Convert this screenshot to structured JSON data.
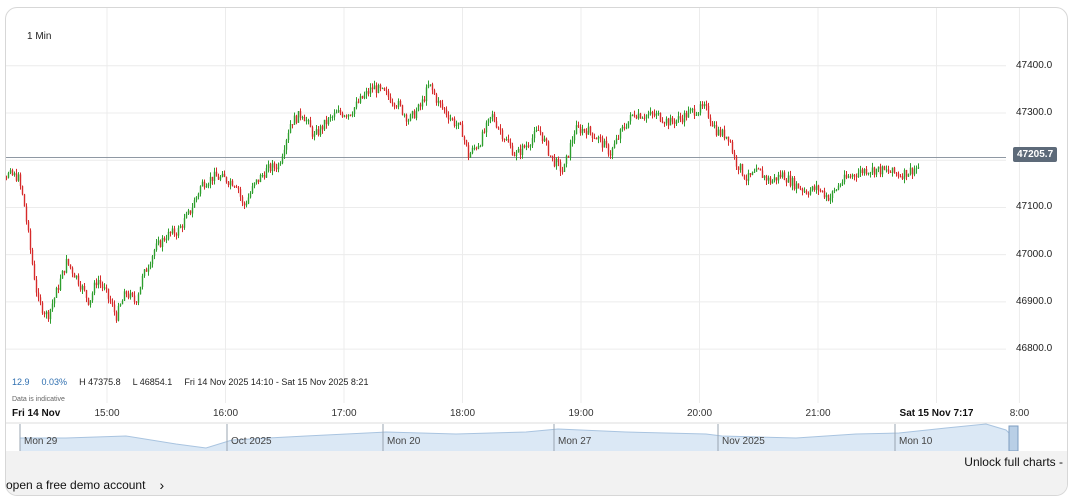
{
  "timeframe": "1 Min",
  "stats": {
    "change": "12.9",
    "change_pct": "0.03%",
    "high": "H 47375.8",
    "low": "L 46854.1",
    "range": "Fri 14 Nov 2025 14:10 - Sat 15 Nov 2025 8:21"
  },
  "indicative": "Data is indicative",
  "colors": {
    "up": "#2e9e2e",
    "down": "#d62b2b",
    "grid": "#ececec",
    "nav_fill": "#dbe8f5",
    "nav_line": "#a9c4e0"
  },
  "chart_data": {
    "type": "candlestick",
    "current_price": "47205.7",
    "ylim": [
      46760,
      47480
    ],
    "y_ticks": [
      "47400.0",
      "47300.0",
      "47200.0",
      "47100.0",
      "47000.0",
      "46900.0",
      "46800.0"
    ],
    "y_tick_values": [
      47400,
      47300,
      47200,
      47100,
      47000,
      46900,
      46800
    ],
    "x_ticks": [
      {
        "label": "Fri 14 Nov",
        "t": -0.25,
        "bold": true
      },
      {
        "label": "15:00",
        "t": 1
      },
      {
        "label": "16:00",
        "t": 2
      },
      {
        "label": "17:00",
        "t": 3
      },
      {
        "label": "18:00",
        "t": 4
      },
      {
        "label": "19:00",
        "t": 5
      },
      {
        "label": "20:00",
        "t": 6
      },
      {
        "label": "21:00",
        "t": 7
      },
      {
        "label": "Sat 15 Nov 7:17",
        "t": 8.0,
        "bold": true
      },
      {
        "label": "8:00",
        "t": 8.7
      }
    ],
    "price_path": [
      [
        0.0,
        47185
      ],
      [
        0.15,
        47170
      ],
      [
        0.25,
        47165
      ],
      [
        0.3,
        47110
      ],
      [
        0.36,
        47000
      ],
      [
        0.42,
        46900
      ],
      [
        0.5,
        46870
      ],
      [
        0.58,
        46925
      ],
      [
        0.66,
        46985
      ],
      [
        0.75,
        46950
      ],
      [
        0.85,
        46900
      ],
      [
        0.92,
        46950
      ],
      [
        1.0,
        46915
      ],
      [
        1.08,
        46870
      ],
      [
        1.16,
        46920
      ],
      [
        1.24,
        46900
      ],
      [
        1.3,
        46950
      ],
      [
        1.4,
        47010
      ],
      [
        1.5,
        47040
      ],
      [
        1.6,
        47050
      ],
      [
        1.7,
        47090
      ],
      [
        1.8,
        47150
      ],
      [
        1.9,
        47165
      ],
      [
        2.0,
        47160
      ],
      [
        2.1,
        47150
      ],
      [
        2.15,
        47100
      ],
      [
        2.25,
        47150
      ],
      [
        2.35,
        47180
      ],
      [
        2.45,
        47190
      ],
      [
        2.55,
        47280
      ],
      [
        2.65,
        47300
      ],
      [
        2.75,
        47250
      ],
      [
        2.85,
        47280
      ],
      [
        2.95,
        47300
      ],
      [
        3.05,
        47300
      ],
      [
        3.15,
        47330
      ],
      [
        3.25,
        47355
      ],
      [
        3.35,
        47340
      ],
      [
        3.45,
        47320
      ],
      [
        3.55,
        47285
      ],
      [
        3.65,
        47315
      ],
      [
        3.72,
        47360
      ],
      [
        3.8,
        47320
      ],
      [
        3.9,
        47290
      ],
      [
        4.0,
        47260
      ],
      [
        4.05,
        47210
      ],
      [
        4.15,
        47240
      ],
      [
        4.25,
        47295
      ],
      [
        4.35,
        47250
      ],
      [
        4.45,
        47210
      ],
      [
        4.55,
        47235
      ],
      [
        4.65,
        47265
      ],
      [
        4.75,
        47205
      ],
      [
        4.85,
        47175
      ],
      [
        4.95,
        47265
      ],
      [
        5.05,
        47265
      ],
      [
        5.15,
        47245
      ],
      [
        5.25,
        47215
      ],
      [
        5.35,
        47265
      ],
      [
        5.45,
        47300
      ],
      [
        5.55,
        47295
      ],
      [
        5.65,
        47295
      ],
      [
        5.75,
        47280
      ],
      [
        5.85,
        47290
      ],
      [
        5.95,
        47305
      ],
      [
        6.05,
        47310
      ],
      [
        6.15,
        47260
      ],
      [
        6.25,
        47250
      ],
      [
        6.3,
        47200
      ],
      [
        6.4,
        47160
      ],
      [
        6.5,
        47175
      ],
      [
        6.6,
        47155
      ],
      [
        6.7,
        47170
      ],
      [
        6.8,
        47150
      ],
      [
        6.9,
        47135
      ],
      [
        7.0,
        47140
      ],
      [
        7.1,
        47120
      ],
      [
        7.2,
        47155
      ],
      [
        7.3,
        47170
      ],
      [
        7.4,
        47180
      ],
      [
        7.5,
        47180
      ],
      [
        7.6,
        47175
      ],
      [
        7.7,
        47170
      ],
      [
        7.8,
        47180
      ],
      [
        7.85,
        47185
      ]
    ],
    "nav_labels": [
      {
        "label": "Mon 29",
        "x": 18
      },
      {
        "label": "Oct 2025",
        "x": 225
      },
      {
        "label": "Mon 20",
        "x": 381
      },
      {
        "label": "Mon 27",
        "x": 552
      },
      {
        "label": "Nov 2025",
        "x": 716
      },
      {
        "label": "Mon 10",
        "x": 893
      }
    ]
  },
  "footer": {
    "unlock": "Unlock full charts -",
    "demo": "open a free demo account",
    "chevron": "›"
  }
}
